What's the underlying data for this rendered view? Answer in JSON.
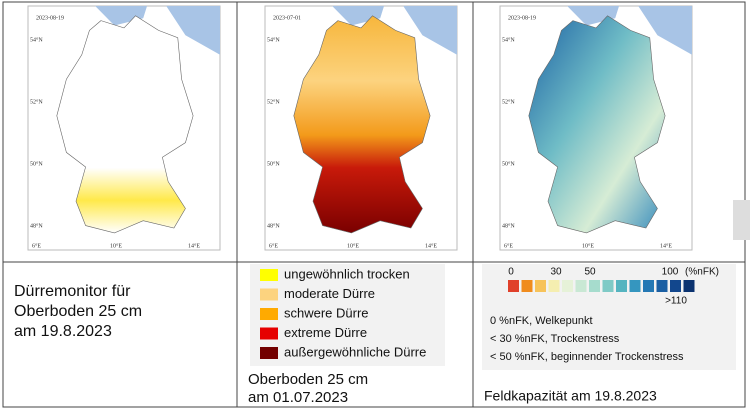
{
  "maps": [
    {
      "date": "2023-08-19",
      "lat_labels": [
        "54°N",
        "52°N",
        "50°N",
        "48°N"
      ],
      "lon_labels": [
        "6°E",
        "10°E",
        "14°E"
      ]
    },
    {
      "date": "2023-07-01",
      "lat_labels": [
        "54°N",
        "52°N",
        "50°N",
        "48°N"
      ],
      "lon_labels": [
        "6°E",
        "10°E",
        "14°E"
      ]
    },
    {
      "date": "2023-08-19",
      "lat_labels": [
        "54°N",
        "52°N",
        "50°N",
        "48°N"
      ],
      "lon_labels": [
        "6°E",
        "10°E",
        "14°E"
      ]
    }
  ],
  "cell1": {
    "lines": [
      "Dürremonitor für",
      "Oberboden 25 cm",
      "am 19.8.2023"
    ]
  },
  "cell2": {
    "legend": [
      {
        "label": "ungewöhnlich trocken",
        "color": "#ffff00"
      },
      {
        "label": "moderate Dürre",
        "color": "#fcd37f"
      },
      {
        "label": "schwere Dürre",
        "color": "#ffaa00"
      },
      {
        "label": "extreme Dürre",
        "color": "#e60000"
      },
      {
        "label": "außergewöhnliche Dürre",
        "color": "#730000"
      }
    ],
    "caption": [
      "Oberboden 25 cm",
      "am 01.07.2023"
    ]
  },
  "cell3": {
    "scale_labels": [
      "0",
      "30",
      "50",
      "100",
      "(%nFK)",
      ">110"
    ],
    "scale_colors": [
      "#e0402a",
      "#f08c1e",
      "#f7c35a",
      "#f5eeb0",
      "#e6f2d8",
      "#c9e8d4",
      "#a6dccd",
      "#7fcac6",
      "#55b4c0",
      "#3596bf",
      "#2478b4",
      "#1a5fa3",
      "#12478d",
      "#0b3370"
    ],
    "notes": [
      "0 %nFK, Welkepunkt",
      "< 30 %nFK, Trockenstress",
      "< 50 %nFK, beginnender Trockenstress"
    ],
    "caption": "Feldkapazität am 19.8.2023"
  }
}
